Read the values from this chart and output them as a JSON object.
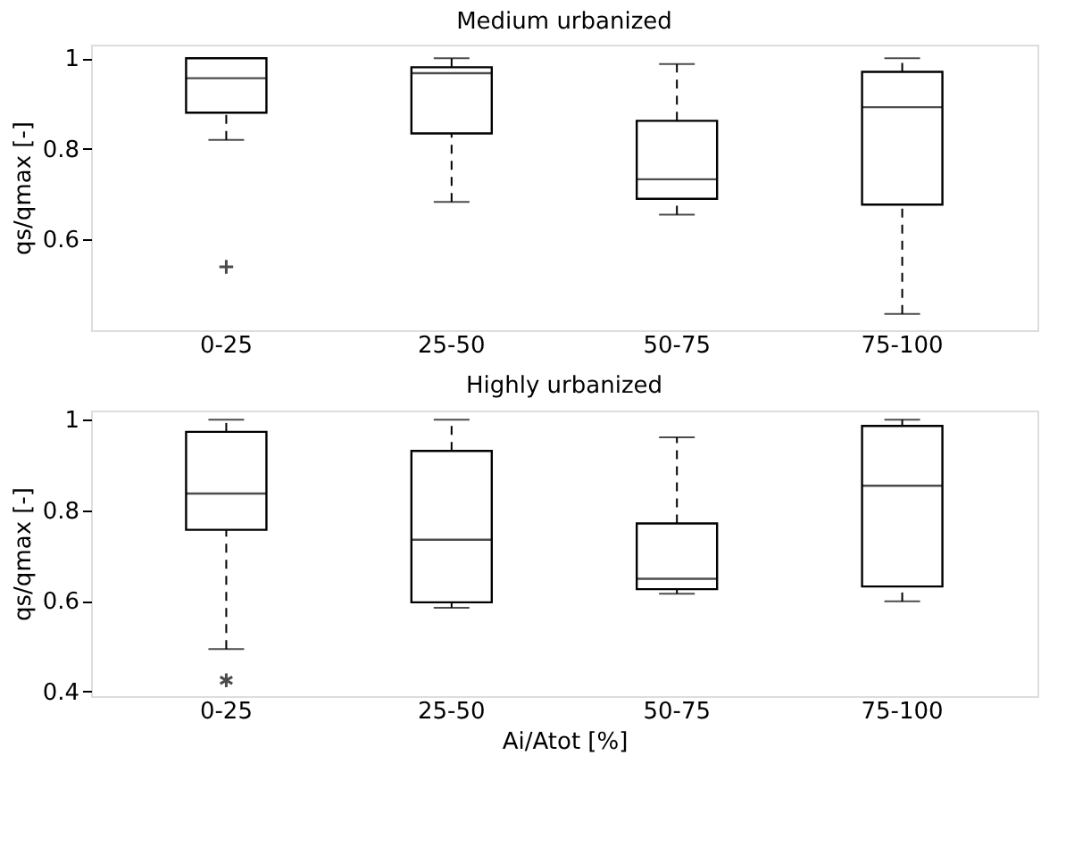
{
  "chart_data": [
    {
      "type": "box",
      "title": "Medium urbanized",
      "ylabel": "qs/qmax [-]",
      "categories": [
        "0-25",
        "25-50",
        "50-75",
        "75-100"
      ],
      "ylim": [
        0.4,
        1.03
      ],
      "yticks": [
        0.6,
        0.8,
        1
      ],
      "grid": false,
      "marker": "cross",
      "line_style": "dashed",
      "color": "#000000",
      "tick_labels": "xy",
      "boxes": [
        {
          "low": 0.82,
          "q1": 0.88,
          "median": 0.956,
          "q3": 1.0,
          "high": 1.0,
          "outliers": [
            0.54
          ]
        },
        {
          "low": 0.683,
          "q1": 0.834,
          "median": 0.967,
          "q3": 0.98,
          "high": 1.0
        },
        {
          "low": 0.655,
          "q1": 0.69,
          "median": 0.733,
          "q3": 0.862,
          "high": 0.987
        },
        {
          "low": 0.436,
          "q1": 0.677,
          "median": 0.892,
          "q3": 0.97,
          "high": 1.0
        }
      ]
    },
    {
      "type": "box",
      "title": "Highly urbanized",
      "ylabel": "qs/qmax [-]",
      "xlabel": "Ai/Atot [%]",
      "categories": [
        "0-25",
        "25-50",
        "50-75",
        "75-100"
      ],
      "ylim": [
        0.39,
        1.02
      ],
      "yticks": [
        0.4,
        0.6,
        0.8,
        1
      ],
      "grid": false,
      "marker": "star",
      "line_style": "dashed",
      "color": "#000000",
      "boxes": [
        {
          "low": 0.494,
          "q1": 0.757,
          "median": 0.837,
          "q3": 0.973,
          "high": 1.0,
          "outliers": [
            0.425
          ]
        },
        {
          "low": 0.585,
          "q1": 0.597,
          "median": 0.735,
          "q3": 0.931,
          "high": 1.0
        },
        {
          "low": 0.616,
          "q1": 0.626,
          "median": 0.649,
          "q3": 0.771,
          "high": 0.961
        },
        {
          "low": 0.599,
          "q1": 0.632,
          "median": 0.854,
          "q3": 0.986,
          "high": 1.0
        }
      ]
    }
  ]
}
